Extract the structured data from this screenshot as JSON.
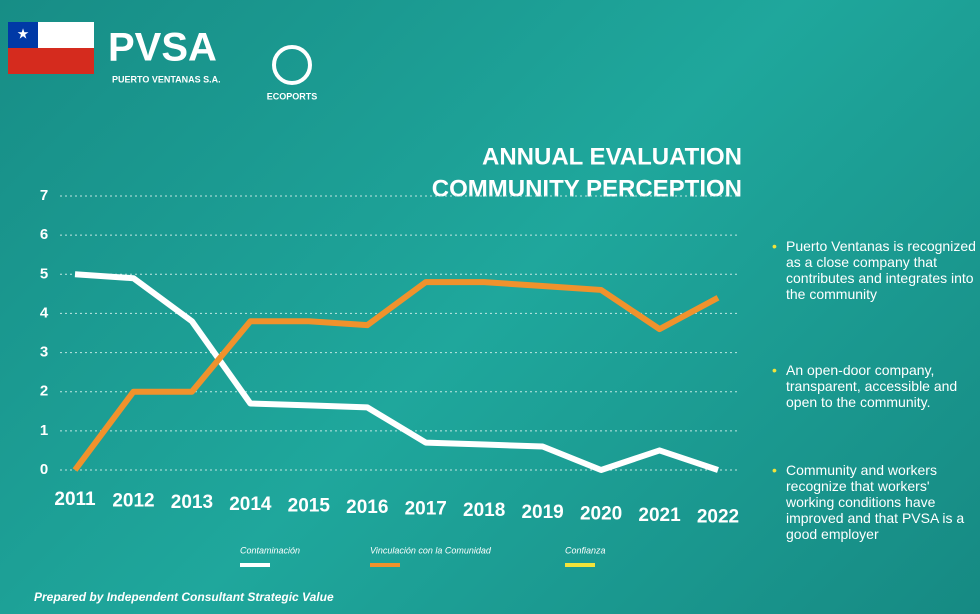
{
  "brand": {
    "name": "PVSA",
    "subtitle": "PUERTO VENTANAS S.A.",
    "partner": "ECOPORTS"
  },
  "bullets": [
    "Puerto Ventanas is recognized as a close company that contributes and integrates into the community",
    "An open-door company, transparent, accessible and open to the community.",
    "Community and workers recognize that workers' working conditions have improved and that PVSA is a good employer"
  ],
  "footer": "Prepared by Independent Consultant Strategic Value",
  "chart_data": {
    "type": "line",
    "title": [
      "ANNUAL EVALUATION",
      "COMMUNITY PERCEPTION"
    ],
    "categories": [
      "2011",
      "2012",
      "2013",
      "2014",
      "2015",
      "2016",
      "2017",
      "2018",
      "2019",
      "2020",
      "2021",
      "2022"
    ],
    "series": [
      {
        "name": "Contaminación",
        "color": "#ffffff",
        "values": [
          5.0,
          4.9,
          3.8,
          1.7,
          1.65,
          1.6,
          0.7,
          0.65,
          0.6,
          0,
          0.5,
          0
        ]
      },
      {
        "name": "Vinculación con la Comunidad",
        "color": "#f0922c",
        "values": [
          0,
          2.0,
          2.0,
          3.8,
          3.8,
          3.7,
          4.8,
          4.8,
          4.7,
          4.6,
          3.6,
          4.4
        ]
      },
      {
        "name": "Confianza",
        "color": "#f2e33a",
        "values": [
          null,
          null,
          null,
          null,
          null,
          null,
          null,
          null,
          null,
          null,
          null,
          null
        ]
      }
    ],
    "ylim": [
      0,
      7
    ],
    "yticks": [
      0,
      1,
      2,
      3,
      4,
      5,
      6,
      7
    ],
    "grid": true
  }
}
